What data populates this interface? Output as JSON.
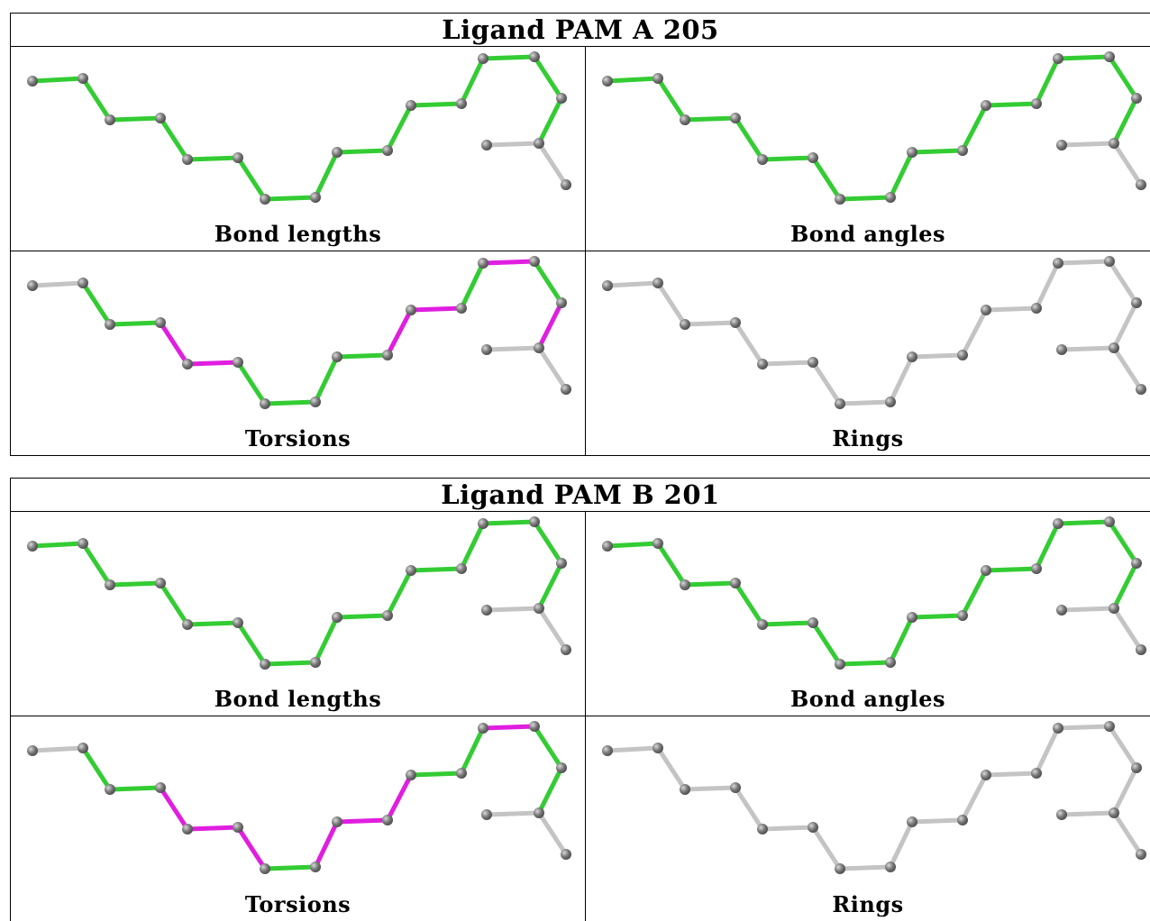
{
  "colors": {
    "ok_bond": "#33cc33",
    "outlier_bond": "#e01ee0",
    "unchecked_bond": "#c4c4c4",
    "atom": "#777777"
  },
  "blocks": [
    {
      "title": "Ligand PAM A 205",
      "panels": [
        {
          "caption": "Bond lengths",
          "chain": [
            "g",
            "g",
            "g",
            "g",
            "g",
            "g",
            "g",
            "g",
            "g",
            "g",
            "g",
            "g",
            "g",
            "g",
            "g",
            "g"
          ],
          "branch": [
            "n",
            "n",
            "n"
          ]
        },
        {
          "caption": "Bond angles",
          "chain": [
            "g",
            "g",
            "g",
            "g",
            "g",
            "g",
            "g",
            "g",
            "g",
            "g",
            "g",
            "g",
            "g",
            "g",
            "g",
            "g"
          ],
          "branch": [
            "n",
            "n",
            "n"
          ]
        },
        {
          "caption": "Torsions",
          "chain": [
            "n",
            "g",
            "g",
            "m",
            "m",
            "g",
            "g",
            "g",
            "g",
            "m",
            "m",
            "g",
            "m",
            "g",
            "m",
            "n"
          ],
          "branch": [
            "n",
            "n",
            "n"
          ]
        },
        {
          "caption": "Rings",
          "chain": [
            "n",
            "n",
            "n",
            "n",
            "n",
            "n",
            "n",
            "n",
            "n",
            "n",
            "n",
            "n",
            "n",
            "n",
            "n",
            "n"
          ],
          "branch": [
            "n",
            "n",
            "n"
          ]
        }
      ]
    },
    {
      "title": "Ligand PAM B 201",
      "panels": [
        {
          "caption": "Bond lengths",
          "chain": [
            "g",
            "g",
            "g",
            "g",
            "g",
            "g",
            "g",
            "g",
            "g",
            "g",
            "g",
            "g",
            "g",
            "g",
            "g",
            "g"
          ],
          "branch": [
            "n",
            "n",
            "n"
          ]
        },
        {
          "caption": "Bond angles",
          "chain": [
            "g",
            "g",
            "g",
            "g",
            "g",
            "g",
            "g",
            "g",
            "g",
            "g",
            "g",
            "g",
            "g",
            "g",
            "g",
            "g"
          ],
          "branch": [
            "n",
            "n",
            "n"
          ]
        },
        {
          "caption": "Torsions",
          "chain": [
            "n",
            "g",
            "g",
            "m",
            "m",
            "m",
            "g",
            "m",
            "m",
            "m",
            "g",
            "g",
            "m",
            "g",
            "g",
            "n"
          ],
          "branch": [
            "n",
            "n",
            "n"
          ]
        },
        {
          "caption": "Rings",
          "chain": [
            "n",
            "n",
            "n",
            "n",
            "n",
            "n",
            "n",
            "n",
            "n",
            "n",
            "n",
            "n",
            "n",
            "n",
            "n",
            "n"
          ],
          "branch": [
            "n",
            "n",
            "n"
          ]
        }
      ]
    }
  ]
}
